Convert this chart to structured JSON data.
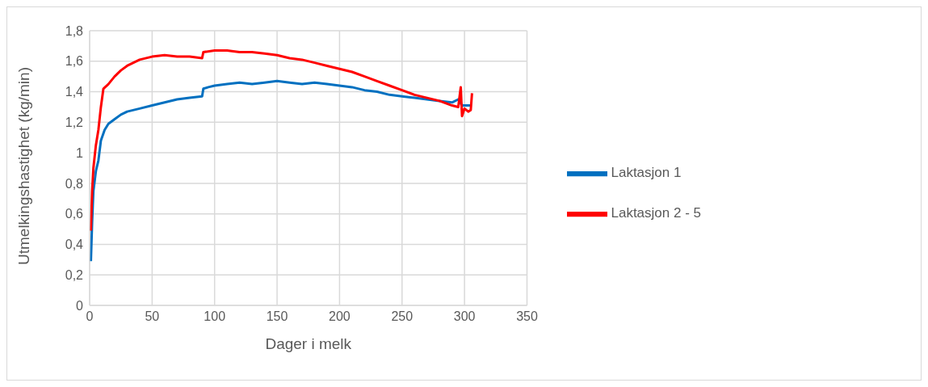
{
  "chart_data": {
    "type": "line",
    "xlabel": "Dager i melk",
    "ylabel": "Utmelkingshastighet (kg/min)",
    "xlim": [
      0,
      350
    ],
    "xticks": [
      0,
      50,
      100,
      150,
      200,
      250,
      300,
      350
    ],
    "ylim": [
      0,
      1.8
    ],
    "yticks": [
      {
        "value": 0,
        "label": "0"
      },
      {
        "value": 0.2,
        "label": "0,2"
      },
      {
        "value": 0.4,
        "label": "0,4"
      },
      {
        "value": 0.6,
        "label": "0,6"
      },
      {
        "value": 0.8,
        "label": "0,8"
      },
      {
        "value": 1,
        "label": "1"
      },
      {
        "value": 1.2,
        "label": "1,2"
      },
      {
        "value": 1.4,
        "label": "1,4"
      },
      {
        "value": 1.6,
        "label": "1,6"
      },
      {
        "value": 1.8,
        "label": "1,8"
      }
    ],
    "grid": true,
    "legend": "right",
    "marker": "none",
    "line_style": "solid",
    "series": [
      {
        "name": "Laktasjon 1",
        "color": "#0070c0",
        "x": [
          1,
          2,
          3,
          5,
          7,
          9,
          12,
          15,
          20,
          25,
          30,
          40,
          50,
          60,
          70,
          80,
          90,
          91,
          95,
          100,
          110,
          120,
          130,
          140,
          150,
          160,
          170,
          180,
          190,
          200,
          210,
          220,
          230,
          240,
          250,
          260,
          270,
          280,
          290,
          295,
          298,
          300,
          305
        ],
        "values": [
          0.29,
          0.55,
          0.75,
          0.88,
          0.95,
          1.08,
          1.15,
          1.19,
          1.22,
          1.25,
          1.27,
          1.29,
          1.31,
          1.33,
          1.35,
          1.36,
          1.37,
          1.42,
          1.43,
          1.44,
          1.45,
          1.46,
          1.45,
          1.46,
          1.47,
          1.46,
          1.45,
          1.46,
          1.45,
          1.44,
          1.43,
          1.41,
          1.4,
          1.38,
          1.37,
          1.36,
          1.35,
          1.34,
          1.33,
          1.35,
          1.31,
          1.31,
          1.31
        ]
      },
      {
        "name": "Laktasjon 2 - 5",
        "color": "#ff0000",
        "x": [
          1,
          2,
          3,
          5,
          7,
          9,
          11,
          15,
          20,
          25,
          30,
          40,
          50,
          60,
          70,
          80,
          90,
          91,
          100,
          110,
          120,
          130,
          140,
          150,
          160,
          170,
          180,
          190,
          200,
          210,
          220,
          230,
          240,
          250,
          260,
          270,
          280,
          290,
          295,
          297,
          298,
          300,
          303,
          305,
          306
        ],
        "values": [
          0.49,
          0.75,
          0.9,
          1.05,
          1.15,
          1.3,
          1.42,
          1.45,
          1.5,
          1.54,
          1.57,
          1.61,
          1.63,
          1.64,
          1.63,
          1.63,
          1.62,
          1.66,
          1.67,
          1.67,
          1.66,
          1.66,
          1.65,
          1.64,
          1.62,
          1.61,
          1.59,
          1.57,
          1.55,
          1.53,
          1.5,
          1.47,
          1.44,
          1.41,
          1.38,
          1.36,
          1.34,
          1.31,
          1.3,
          1.43,
          1.24,
          1.29,
          1.27,
          1.28,
          1.39
        ]
      }
    ]
  }
}
